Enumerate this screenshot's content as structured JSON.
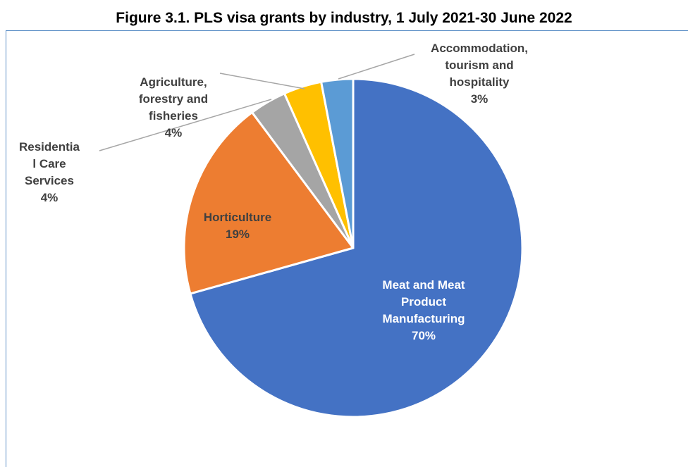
{
  "title": "Figure 3.1. PLS visa grants by industry, 1 July 2021-30 June 2022",
  "chart_data": {
    "type": "pie",
    "title": "Figure 3.1. PLS visa grants by industry, 1 July 2021-30 June 2022",
    "start": "12 o'clock",
    "direction": "clockwise",
    "slices": [
      {
        "lines": [
          "Meat and Meat",
          "Product",
          "Manufacturing"
        ],
        "percent_label": "70%",
        "value": 70,
        "color": "#4472c4"
      },
      {
        "lines": [
          "Horticulture"
        ],
        "percent_label": "19%",
        "value": 19,
        "color": "#ed7d31"
      },
      {
        "lines": [
          "Residentia",
          "l Care",
          "Services"
        ],
        "percent_label": "4%",
        "value": 3.5,
        "color": "#a5a5a5"
      },
      {
        "lines": [
          "Agriculture,",
          "forestry and",
          "fisheries"
        ],
        "percent_label": "4%",
        "value": 3.6,
        "color": "#ffc000"
      },
      {
        "lines": [
          "Accommodation,",
          "tourism and",
          "hospitality"
        ],
        "percent_label": "3%",
        "value": 3,
        "color": "#5b9bd5"
      }
    ]
  }
}
